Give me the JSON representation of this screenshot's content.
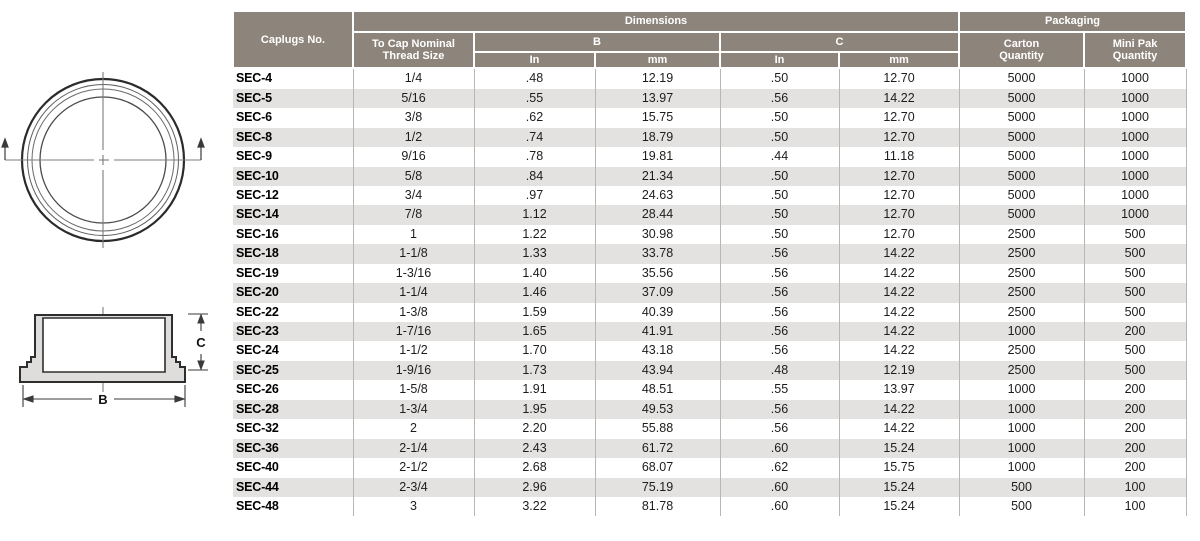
{
  "colors": {
    "header_bg": "#8d857b",
    "header_text": "#ffffff",
    "row_stripe": "#e3e2e0",
    "grid_line": "#b8b6b2",
    "header_underline": "#4a4a48",
    "body_text": "#1d1d1b"
  },
  "diagrams": {
    "top_view": {
      "description_icon": "cap-top-view-concentric-circles"
    },
    "section_view": {
      "dim_b": "B",
      "dim_c": "C"
    }
  },
  "table": {
    "header": {
      "caplugs_no": "Caplugs No.",
      "dimensions": "Dimensions",
      "packaging": "Packaging",
      "thread_line1": "To Cap Nominal",
      "thread_line2": "Thread Size",
      "b": "B",
      "c": "C",
      "in": "In",
      "mm": "mm",
      "carton_line1": "Carton",
      "carton_line2": "Quantity",
      "minipak_line1": "Mini Pak",
      "minipak_line2": "Quantity"
    },
    "columns_order": [
      "no",
      "thread",
      "b_in",
      "b_mm",
      "c_in",
      "c_mm",
      "carton",
      "minipak"
    ],
    "rows": [
      {
        "no": "SEC-4",
        "thread": "1/4",
        "b_in": ".48",
        "b_mm": "12.19",
        "c_in": ".50",
        "c_mm": "12.70",
        "carton": "5000",
        "minipak": "1000"
      },
      {
        "no": "SEC-5",
        "thread": "5/16",
        "b_in": ".55",
        "b_mm": "13.97",
        "c_in": ".56",
        "c_mm": "14.22",
        "carton": "5000",
        "minipak": "1000"
      },
      {
        "no": "SEC-6",
        "thread": "3/8",
        "b_in": ".62",
        "b_mm": "15.75",
        "c_in": ".50",
        "c_mm": "12.70",
        "carton": "5000",
        "minipak": "1000"
      },
      {
        "no": "SEC-8",
        "thread": "1/2",
        "b_in": ".74",
        "b_mm": "18.79",
        "c_in": ".50",
        "c_mm": "12.70",
        "carton": "5000",
        "minipak": "1000"
      },
      {
        "no": "SEC-9",
        "thread": "9/16",
        "b_in": ".78",
        "b_mm": "19.81",
        "c_in": ".44",
        "c_mm": "11.18",
        "carton": "5000",
        "minipak": "1000"
      },
      {
        "no": "SEC-10",
        "thread": "5/8",
        "b_in": ".84",
        "b_mm": "21.34",
        "c_in": ".50",
        "c_mm": "12.70",
        "carton": "5000",
        "minipak": "1000"
      },
      {
        "no": "SEC-12",
        "thread": "3/4",
        "b_in": ".97",
        "b_mm": "24.63",
        "c_in": ".50",
        "c_mm": "12.70",
        "carton": "5000",
        "minipak": "1000"
      },
      {
        "no": "SEC-14",
        "thread": "7/8",
        "b_in": "1.12",
        "b_mm": "28.44",
        "c_in": ".50",
        "c_mm": "12.70",
        "carton": "5000",
        "minipak": "1000"
      },
      {
        "no": "SEC-16",
        "thread": "1",
        "b_in": "1.22",
        "b_mm": "30.98",
        "c_in": ".50",
        "c_mm": "12.70",
        "carton": "2500",
        "minipak": "500"
      },
      {
        "no": "SEC-18",
        "thread": "1-1/8",
        "b_in": "1.33",
        "b_mm": "33.78",
        "c_in": ".56",
        "c_mm": "14.22",
        "carton": "2500",
        "minipak": "500"
      },
      {
        "no": "SEC-19",
        "thread": "1-3/16",
        "b_in": "1.40",
        "b_mm": "35.56",
        "c_in": ".56",
        "c_mm": "14.22",
        "carton": "2500",
        "minipak": "500"
      },
      {
        "no": "SEC-20",
        "thread": "1-1/4",
        "b_in": "1.46",
        "b_mm": "37.09",
        "c_in": ".56",
        "c_mm": "14.22",
        "carton": "2500",
        "minipak": "500"
      },
      {
        "no": "SEC-22",
        "thread": "1-3/8",
        "b_in": "1.59",
        "b_mm": "40.39",
        "c_in": ".56",
        "c_mm": "14.22",
        "carton": "2500",
        "minipak": "500"
      },
      {
        "no": "SEC-23",
        "thread": "1-7/16",
        "b_in": "1.65",
        "b_mm": "41.91",
        "c_in": ".56",
        "c_mm": "14.22",
        "carton": "1000",
        "minipak": "200"
      },
      {
        "no": "SEC-24",
        "thread": "1-1/2",
        "b_in": "1.70",
        "b_mm": "43.18",
        "c_in": ".56",
        "c_mm": "14.22",
        "carton": "2500",
        "minipak": "500"
      },
      {
        "no": "SEC-25",
        "thread": "1-9/16",
        "b_in": "1.73",
        "b_mm": "43.94",
        "c_in": ".48",
        "c_mm": "12.19",
        "carton": "2500",
        "minipak": "500"
      },
      {
        "no": "SEC-26",
        "thread": "1-5/8",
        "b_in": "1.91",
        "b_mm": "48.51",
        "c_in": ".55",
        "c_mm": "13.97",
        "carton": "1000",
        "minipak": "200"
      },
      {
        "no": "SEC-28",
        "thread": "1-3/4",
        "b_in": "1.95",
        "b_mm": "49.53",
        "c_in": ".56",
        "c_mm": "14.22",
        "carton": "1000",
        "minipak": "200"
      },
      {
        "no": "SEC-32",
        "thread": "2",
        "b_in": "2.20",
        "b_mm": "55.88",
        "c_in": ".56",
        "c_mm": "14.22",
        "carton": "1000",
        "minipak": "200"
      },
      {
        "no": "SEC-36",
        "thread": "2-1/4",
        "b_in": "2.43",
        "b_mm": "61.72",
        "c_in": ".60",
        "c_mm": "15.24",
        "carton": "1000",
        "minipak": "200"
      },
      {
        "no": "SEC-40",
        "thread": "2-1/2",
        "b_in": "2.68",
        "b_mm": "68.07",
        "c_in": ".62",
        "c_mm": "15.75",
        "carton": "1000",
        "minipak": "200"
      },
      {
        "no": "SEC-44",
        "thread": "2-3/4",
        "b_in": "2.96",
        "b_mm": "75.19",
        "c_in": ".60",
        "c_mm": "15.24",
        "carton": "500",
        "minipak": "100"
      },
      {
        "no": "SEC-48",
        "thread": "3",
        "b_in": "3.22",
        "b_mm": "81.78",
        "c_in": ".60",
        "c_mm": "15.24",
        "carton": "500",
        "minipak": "100"
      }
    ]
  }
}
